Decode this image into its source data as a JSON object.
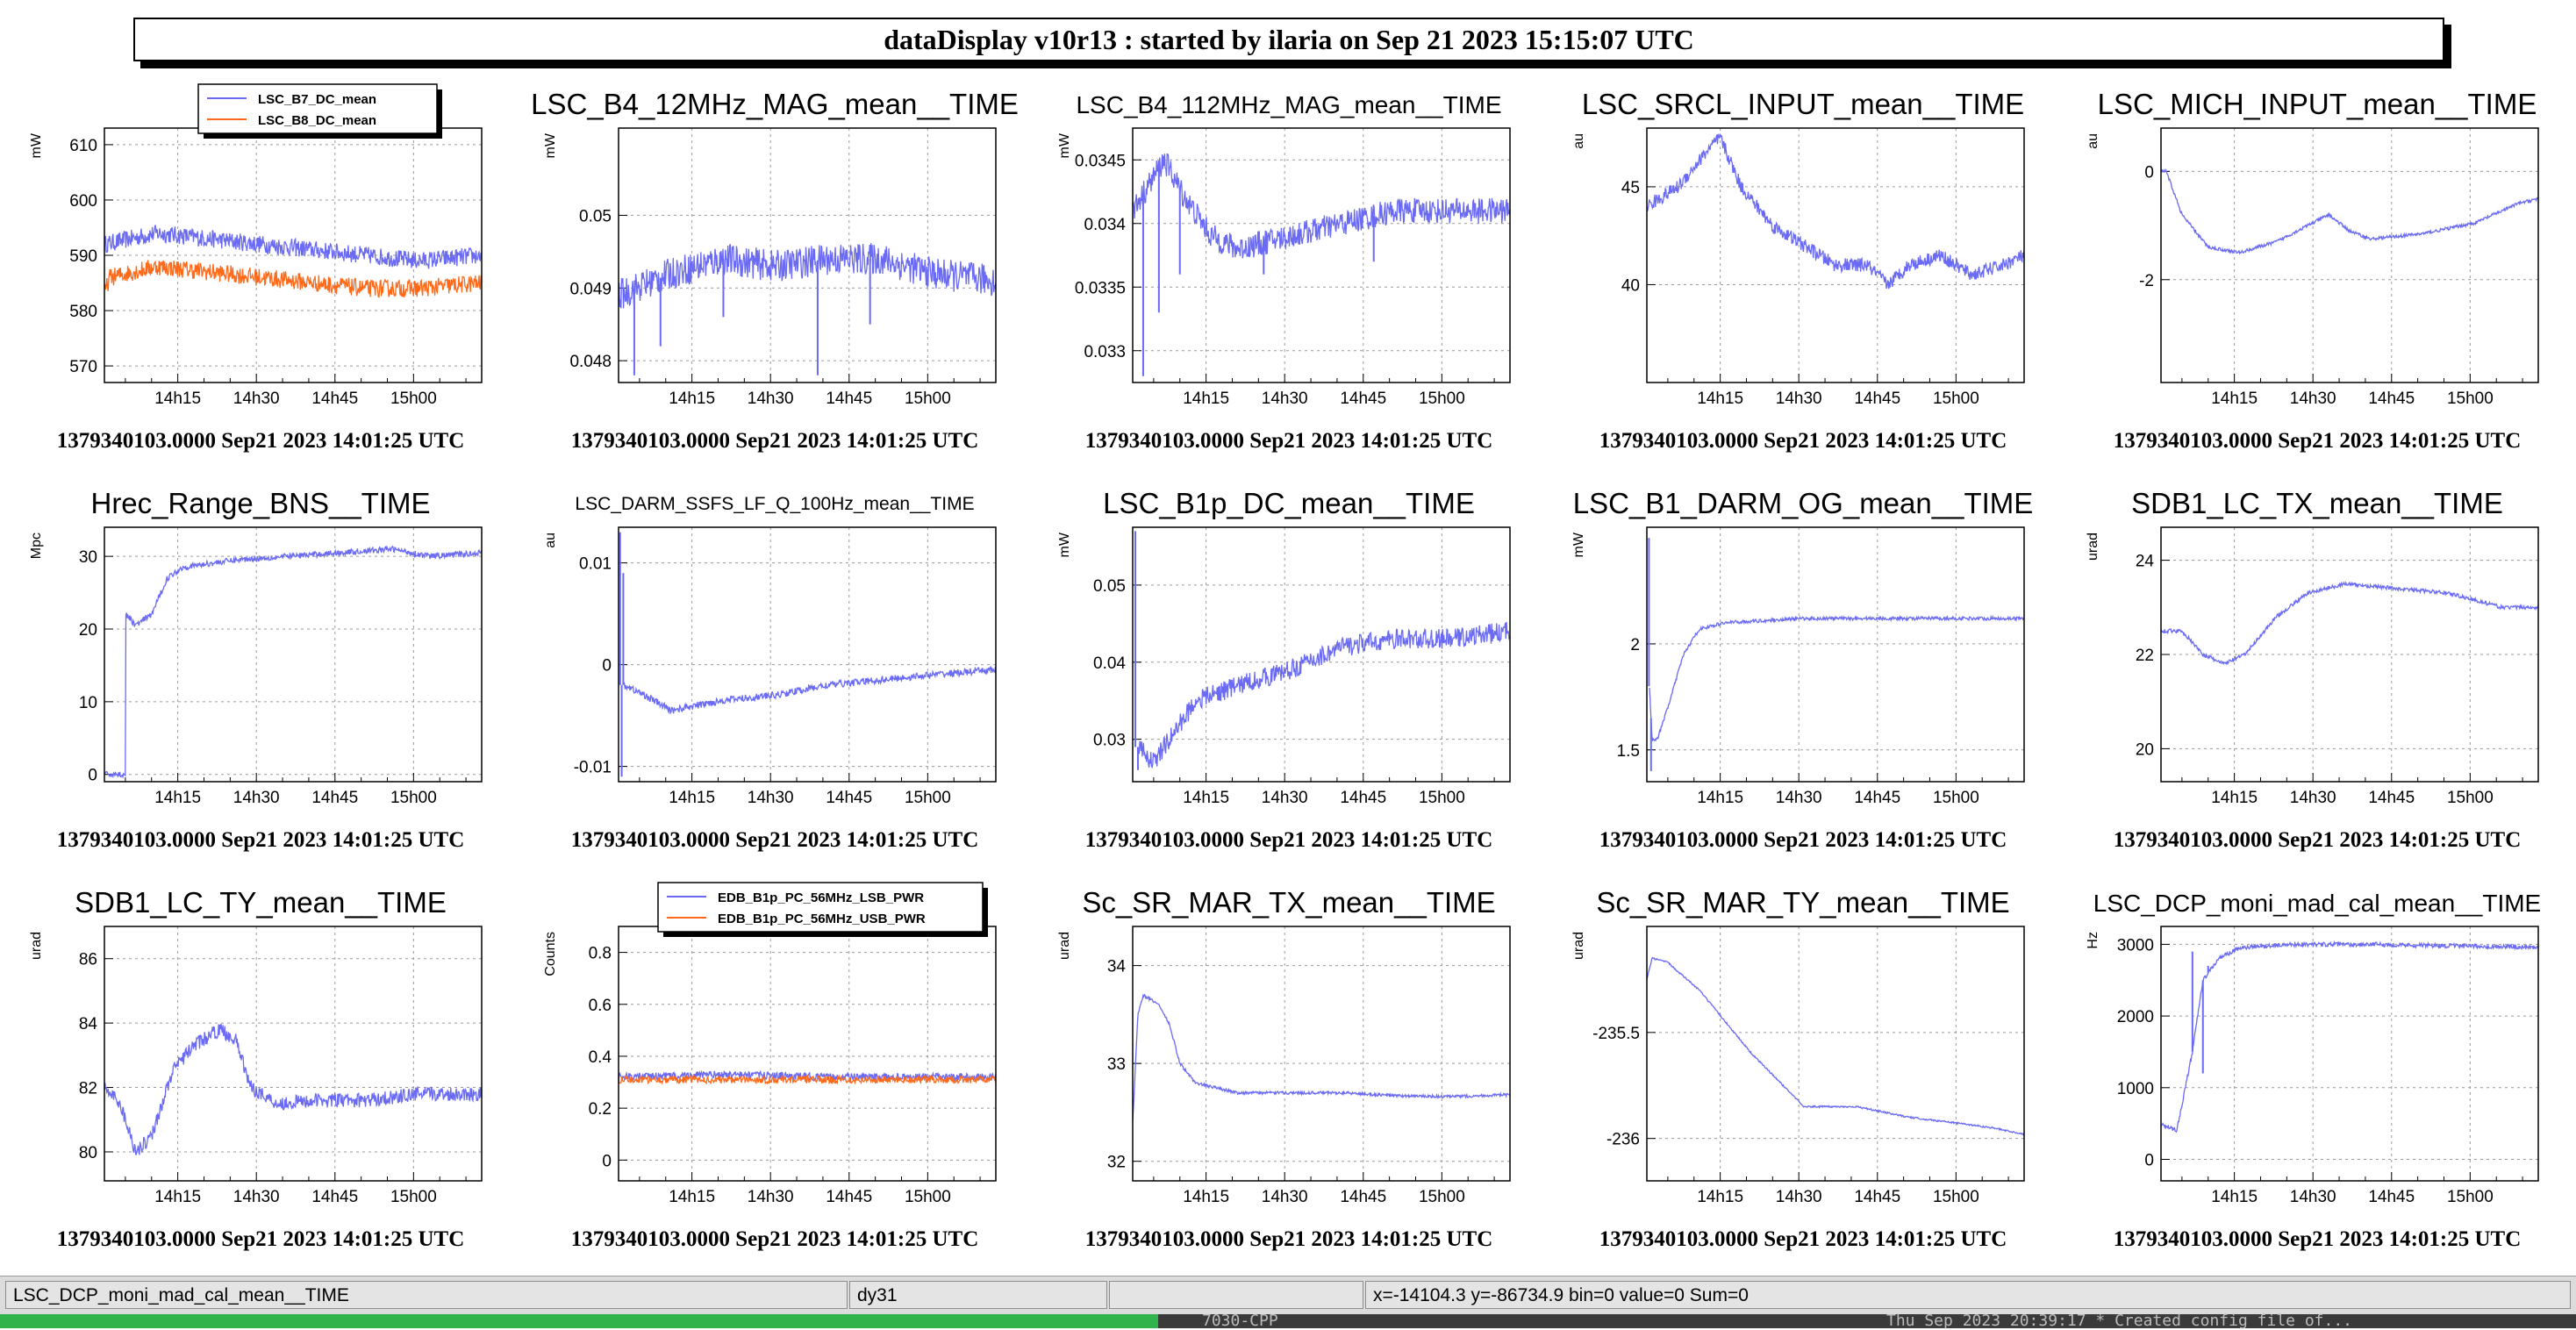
{
  "window": {
    "title": "dataDisplay v10r13 : started by ilaria on Sep 21 2023 15:15:07 UTC"
  },
  "colors": {
    "series1": "#6a6af5",
    "series2": "#ff6a1a",
    "grid": "#9a9a9a",
    "background": "#ffffff"
  },
  "common": {
    "footer": "1379340103.0000 Sep21 2023 14:01:25 UTC",
    "x_ticks": [
      "14h15",
      "14h30",
      "14h45",
      "15h00"
    ],
    "x_tick_minutes": [
      14,
      29,
      44,
      59
    ],
    "x_range_minutes": [
      0,
      72
    ]
  },
  "panels": [
    {
      "title": "",
      "unit": "mW",
      "yrange": [
        567,
        613
      ],
      "yticks": [
        570,
        580,
        590,
        600,
        610
      ],
      "legend": [
        "LSC_B7_DC_mean",
        "LSC_B8_DC_mean"
      ],
      "series": [
        {
          "color": "series1",
          "noise": 1.6,
          "pts": [
            [
              0,
              592
            ],
            [
              10,
              594
            ],
            [
              20,
              593
            ],
            [
              30,
              592
            ],
            [
              40,
              591
            ],
            [
              50,
              590
            ],
            [
              60,
              589
            ],
            [
              72,
              590
            ]
          ]
        },
        {
          "color": "series2",
          "noise": 1.6,
          "pts": [
            [
              0,
              583
            ],
            [
              1,
              586
            ],
            [
              10,
              588
            ],
            [
              20,
              587
            ],
            [
              30,
              586
            ],
            [
              40,
              585
            ],
            [
              50,
              584
            ],
            [
              60,
              584
            ],
            [
              72,
              585
            ]
          ]
        }
      ]
    },
    {
      "title": "LSC_B4_12MHz_MAG_mean__TIME",
      "unit": "mW",
      "yrange": [
        0.0477,
        0.0512
      ],
      "yticks": [
        "0.048",
        "0.049",
        "0.05"
      ],
      "series": [
        {
          "color": "series1",
          "noise": 0.00022,
          "spikes": [
            [
              3,
              0.0478
            ],
            [
              8,
              0.0482
            ],
            [
              20,
              0.0486
            ],
            [
              38,
              0.0478
            ],
            [
              48,
              0.0485
            ]
          ],
          "pts": [
            [
              0,
              0.0489
            ],
            [
              10,
              0.0492
            ],
            [
              20,
              0.0494
            ],
            [
              30,
              0.0493
            ],
            [
              40,
              0.0494
            ],
            [
              50,
              0.0494
            ],
            [
              60,
              0.0492
            ],
            [
              72,
              0.0491
            ]
          ]
        }
      ]
    },
    {
      "title": "LSC_B4_112MHz_MAG_mean__TIME",
      "unit": "mW",
      "yrange": [
        0.03275,
        0.03475
      ],
      "yticks": [
        "0.033",
        "0.0335",
        "0.034",
        "0.0345"
      ],
      "series": [
        {
          "color": "series1",
          "noise": 0.0001,
          "spikes": [
            [
              2,
              0.0328
            ],
            [
              5,
              0.0333
            ],
            [
              9,
              0.0336
            ],
            [
              25,
              0.0336
            ],
            [
              46,
              0.0337
            ]
          ],
          "pts": [
            [
              0,
              0.0341
            ],
            [
              6,
              0.0345
            ],
            [
              10,
              0.0342
            ],
            [
              15,
              0.0339
            ],
            [
              20,
              0.0338
            ],
            [
              30,
              0.0339
            ],
            [
              40,
              0.034
            ],
            [
              50,
              0.0341
            ],
            [
              60,
              0.0341
            ],
            [
              72,
              0.0341
            ]
          ]
        }
      ]
    },
    {
      "title": "LSC_SRCL_INPUT_mean__TIME",
      "unit": "au",
      "yrange": [
        35,
        48
      ],
      "yticks": [
        40,
        45
      ],
      "series": [
        {
          "color": "series1",
          "noise": 0.35,
          "pts": [
            [
              0,
              44
            ],
            [
              6,
              45
            ],
            [
              12,
              47
            ],
            [
              14,
              47.5
            ],
            [
              18,
              45
            ],
            [
              24,
              43
            ],
            [
              30,
              42
            ],
            [
              36,
              41
            ],
            [
              42,
              41
            ],
            [
              46,
              40
            ],
            [
              50,
              41
            ],
            [
              56,
              41.5
            ],
            [
              62,
              40.5
            ],
            [
              68,
              41
            ],
            [
              72,
              41.5
            ]
          ]
        }
      ]
    },
    {
      "title": "LSC_MICH_INPUT_mean__TIME",
      "unit": "au",
      "yrange": [
        -3.9,
        0.8
      ],
      "yticks": [
        -2,
        0
      ],
      "series": [
        {
          "color": "series1",
          "noise": 0.03,
          "pts": [
            [
              0,
              0
            ],
            [
              1,
              0
            ],
            [
              4,
              -0.8
            ],
            [
              9,
              -1.4
            ],
            [
              15,
              -1.5
            ],
            [
              22,
              -1.3
            ],
            [
              28,
              -1.0
            ],
            [
              32,
              -0.8
            ],
            [
              36,
              -1.1
            ],
            [
              40,
              -1.25
            ],
            [
              50,
              -1.15
            ],
            [
              60,
              -0.95
            ],
            [
              68,
              -0.6
            ],
            [
              72,
              -0.5
            ]
          ]
        }
      ]
    },
    {
      "title": "Hrec_Range_BNS__TIME",
      "unit": "Mpc",
      "yrange": [
        -1,
        34
      ],
      "yticks": [
        0,
        10,
        20,
        30
      ],
      "series": [
        {
          "color": "series1",
          "noise": 0.4,
          "pts": [
            [
              0,
              0
            ],
            [
              4,
              0
            ],
            [
              4.1,
              22
            ],
            [
              6,
              20.5
            ],
            [
              9,
              22
            ],
            [
              12,
              27
            ],
            [
              15,
              28.5
            ],
            [
              25,
              29.5
            ],
            [
              35,
              30
            ],
            [
              45,
              30.5
            ],
            [
              55,
              31
            ],
            [
              62,
              30
            ],
            [
              72,
              30.5
            ]
          ]
        }
      ]
    },
    {
      "title": "LSC_DARM_SSFS_LF_Q_100Hz_mean__TIME",
      "unit": "au",
      "yrange": [
        -0.0115,
        0.0135
      ],
      "yticks": [
        "-0.01",
        "0",
        "0.01"
      ],
      "series": [
        {
          "color": "series1",
          "noise": 0.00035,
          "spikes": [
            [
              0.3,
              0.013
            ],
            [
              0.6,
              -0.011
            ],
            [
              0.9,
              0.009
            ]
          ],
          "pts": [
            [
              1,
              -0.002
            ],
            [
              5,
              -0.003
            ],
            [
              10,
              -0.0045
            ],
            [
              20,
              -0.0035
            ],
            [
              30,
              -0.003
            ],
            [
              40,
              -0.002
            ],
            [
              50,
              -0.0015
            ],
            [
              60,
              -0.001
            ],
            [
              72,
              -0.0005
            ]
          ]
        }
      ]
    },
    {
      "title": "LSC_B1p_DC_mean__TIME",
      "unit": "mW",
      "yrange": [
        0.0245,
        0.0575
      ],
      "yticks": [
        "0.03",
        "0.04",
        "0.05"
      ],
      "series": [
        {
          "color": "series1",
          "noise": 0.0013,
          "spikes": [
            [
              0.5,
              0.057
            ],
            [
              1,
              0.026
            ]
          ],
          "pts": [
            [
              1,
              0.029
            ],
            [
              4,
              0.027
            ],
            [
              8,
              0.031
            ],
            [
              12,
              0.035
            ],
            [
              20,
              0.037
            ],
            [
              30,
              0.039
            ],
            [
              40,
              0.042
            ],
            [
              50,
              0.043
            ],
            [
              60,
              0.043
            ],
            [
              72,
              0.044
            ]
          ]
        }
      ]
    },
    {
      "title": "LSC_B1_DARM_OG_mean__TIME",
      "unit": "mW",
      "yrange": [
        1.35,
        2.55
      ],
      "yticks": [
        "1.5",
        "2"
      ],
      "series": [
        {
          "color": "series1",
          "noise": 0.008,
          "spikes": [
            [
              0.4,
              2.5
            ],
            [
              0.8,
              1.4
            ]
          ],
          "pts": [
            [
              0.5,
              1.8
            ],
            [
              1,
              1.55
            ],
            [
              2,
              1.55
            ],
            [
              4,
              1.7
            ],
            [
              7,
              1.95
            ],
            [
              10,
              2.07
            ],
            [
              15,
              2.1
            ],
            [
              30,
              2.12
            ],
            [
              45,
              2.12
            ],
            [
              60,
              2.12
            ],
            [
              72,
              2.12
            ]
          ]
        }
      ]
    },
    {
      "title": "SDB1_LC_TX_mean__TIME",
      "unit": "urad",
      "yrange": [
        19.3,
        24.7
      ],
      "yticks": [
        20,
        22,
        24
      ],
      "series": [
        {
          "color": "series1",
          "noise": 0.04,
          "pts": [
            [
              0,
              22.5
            ],
            [
              4,
              22.5
            ],
            [
              8,
              22
            ],
            [
              12,
              21.8
            ],
            [
              16,
              22
            ],
            [
              22,
              22.8
            ],
            [
              28,
              23.3
            ],
            [
              35,
              23.5
            ],
            [
              45,
              23.4
            ],
            [
              55,
              23.3
            ],
            [
              65,
              23
            ],
            [
              72,
              23
            ]
          ]
        }
      ]
    },
    {
      "title": "SDB1_LC_TY_mean__TIME",
      "unit": "urad",
      "yrange": [
        79.1,
        87
      ],
      "yticks": [
        80,
        82,
        84,
        86
      ],
      "series": [
        {
          "color": "series1",
          "noise": 0.22,
          "pts": [
            [
              0,
              82
            ],
            [
              3,
              81.5
            ],
            [
              6,
              80
            ],
            [
              9,
              80.5
            ],
            [
              13,
              82.5
            ],
            [
              17,
              83.3
            ],
            [
              22,
              83.8
            ],
            [
              25,
              83.5
            ],
            [
              28,
              82
            ],
            [
              33,
              81.5
            ],
            [
              40,
              81.6
            ],
            [
              50,
              81.6
            ],
            [
              60,
              81.8
            ],
            [
              72,
              81.8
            ]
          ]
        }
      ]
    },
    {
      "title": "",
      "unit": "Counts",
      "yrange": [
        -0.08,
        0.9
      ],
      "yticks": [
        "0",
        "0.2",
        "0.4",
        "0.6",
        "0.8"
      ],
      "legend": [
        "EDB_B1p_PC_56MHz_LSB_PWR",
        "EDB_B1p_PC_56MHz_USB_PWR"
      ],
      "series": [
        {
          "color": "series1",
          "noise": 0.014,
          "pts": [
            [
              0,
              0.32
            ],
            [
              20,
              0.33
            ],
            [
              40,
              0.32
            ],
            [
              60,
              0.32
            ],
            [
              72,
              0.32
            ]
          ]
        },
        {
          "color": "series2",
          "noise": 0.014,
          "pts": [
            [
              0,
              0.31
            ],
            [
              20,
              0.31
            ],
            [
              40,
              0.31
            ],
            [
              60,
              0.31
            ],
            [
              72,
              0.31
            ]
          ]
        }
      ]
    },
    {
      "title": "Sc_SR_MAR_TX_mean__TIME",
      "unit": "urad",
      "yrange": [
        31.8,
        34.4
      ],
      "yticks": [
        32,
        33,
        34
      ],
      "series": [
        {
          "color": "series1",
          "noise": 0.015,
          "pts": [
            [
              0,
              32.4
            ],
            [
              1,
              33.5
            ],
            [
              2,
              33.7
            ],
            [
              5,
              33.6
            ],
            [
              7,
              33.4
            ],
            [
              9,
              33
            ],
            [
              12,
              32.8
            ],
            [
              20,
              32.7
            ],
            [
              30,
              32.7
            ],
            [
              40,
              32.7
            ],
            [
              50,
              32.67
            ],
            [
              60,
              32.66
            ],
            [
              72,
              32.68
            ]
          ]
        }
      ]
    },
    {
      "title": "Sc_SR_MAR_TY_mean__TIME",
      "unit": "urad",
      "yrange": [
        -236.2,
        -235.0
      ],
      "yticks": [
        "-236",
        "-235.5"
      ],
      "series": [
        {
          "color": "series1",
          "noise": 0.004,
          "pts": [
            [
              0,
              -235.25
            ],
            [
              1,
              -235.15
            ],
            [
              4,
              -235.17
            ],
            [
              10,
              -235.3
            ],
            [
              20,
              -235.6
            ],
            [
              30,
              -235.85
            ],
            [
              40,
              -235.85
            ],
            [
              50,
              -235.9
            ],
            [
              60,
              -235.93
            ],
            [
              66,
              -235.95
            ],
            [
              72,
              -235.98
            ]
          ]
        }
      ]
    },
    {
      "title": "LSC_DCP_moni_mad_cal_mean__TIME",
      "unit": "Hz",
      "yrange": [
        -300,
        3250
      ],
      "yticks": [
        0,
        1000,
        2000,
        3000
      ],
      "series": [
        {
          "color": "series1",
          "noise": 30,
          "spikes": [
            [
              6,
              2900
            ],
            [
              8,
              1200
            ],
            [
              9,
              2700
            ]
          ],
          "pts": [
            [
              0,
              500
            ],
            [
              3,
              400
            ],
            [
              6,
              1500
            ],
            [
              8,
              2500
            ],
            [
              11,
              2800
            ],
            [
              15,
              2950
            ],
            [
              25,
              3000
            ],
            [
              40,
              3000
            ],
            [
              55,
              2980
            ],
            [
              72,
              2960
            ]
          ]
        }
      ]
    }
  ],
  "status_bar": {
    "object_name": "LSC_DCP_moni_mad_cal_mean__TIME",
    "option": "dy31",
    "empty": "",
    "info": "x=-14104.3 y=-86734.9 bin=0 value=0 Sum=0"
  },
  "taskbar": {
    "left_text": "7030-CPP",
    "right_text": "Thu Sep 2023 20:39:17 * Created config file of..."
  }
}
